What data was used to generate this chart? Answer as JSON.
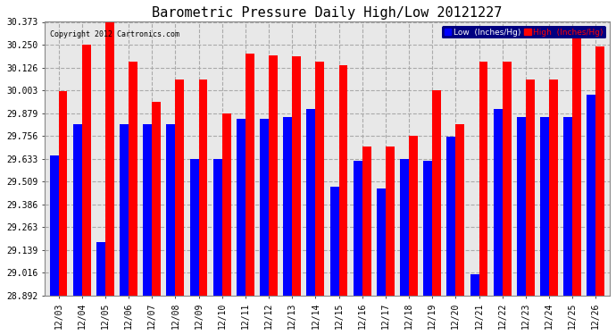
{
  "title": "Barometric Pressure Daily High/Low 20121227",
  "copyright": "Copyright 2012 Cartronics.com",
  "categories": [
    "12/03",
    "12/04",
    "12/05",
    "12/06",
    "12/07",
    "12/08",
    "12/09",
    "12/10",
    "12/11",
    "12/12",
    "12/13",
    "12/14",
    "12/15",
    "12/16",
    "12/17",
    "12/18",
    "12/19",
    "12/20",
    "12/21",
    "12/22",
    "12/23",
    "12/24",
    "12/25",
    "12/26"
  ],
  "low_values": [
    29.65,
    29.82,
    29.18,
    29.82,
    29.82,
    29.82,
    29.63,
    29.63,
    29.85,
    29.85,
    29.86,
    29.9,
    29.48,
    29.62,
    29.47,
    29.63,
    29.62,
    29.75,
    29.01,
    29.9,
    29.86,
    29.86,
    29.86,
    29.98
  ],
  "high_values": [
    30.0,
    30.25,
    30.373,
    30.16,
    29.94,
    30.06,
    30.06,
    29.879,
    30.2,
    30.19,
    30.185,
    30.16,
    30.14,
    29.7,
    29.7,
    29.756,
    30.003,
    29.82,
    30.16,
    30.16,
    30.06,
    30.06,
    30.31,
    30.24
  ],
  "y_ticks": [
    28.892,
    29.016,
    29.139,
    29.263,
    29.386,
    29.509,
    29.633,
    29.756,
    29.879,
    30.003,
    30.126,
    30.25,
    30.373
  ],
  "ymin": 28.892,
  "ymax": 30.373,
  "low_color": "#0000ff",
  "high_color": "#ff0000",
  "bg_color": "#ffffff",
  "plot_bg_color": "#e8e8e8",
  "grid_color": "#aaaaaa",
  "title_fontsize": 11,
  "tick_fontsize": 7,
  "legend_low_label": "Low  (Inches/Hg)",
  "legend_high_label": "High  (Inches/Hg)",
  "legend_bg": "#000080",
  "bar_width": 0.38
}
